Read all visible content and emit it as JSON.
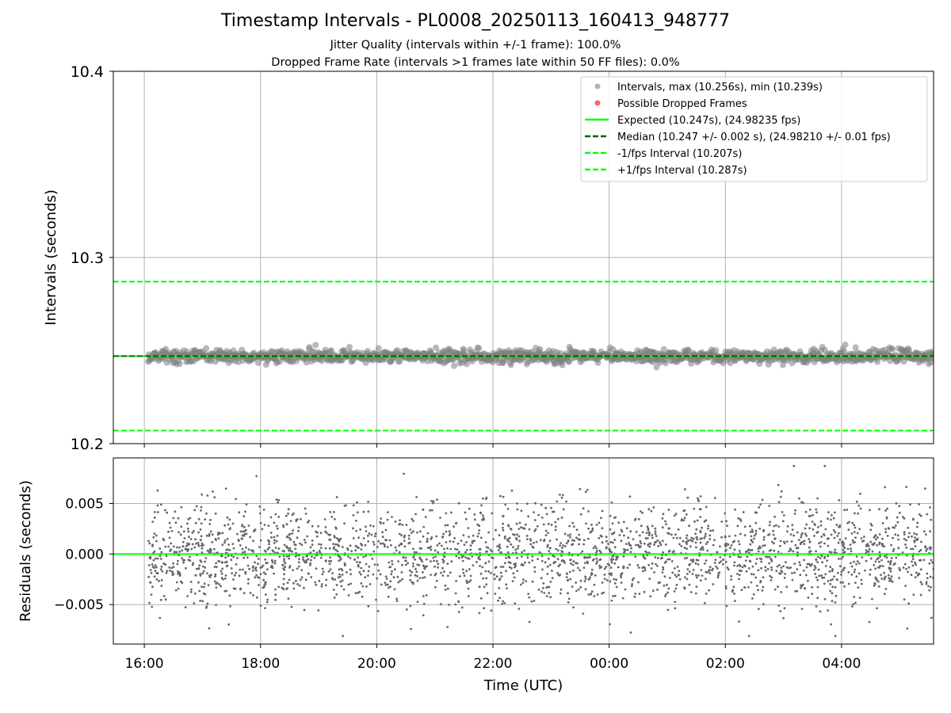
{
  "chart_data": {
    "type": "scatter",
    "title": "Timestamp Intervals - PL0008_20250113_160413_948777",
    "subtitle_lines": [
      "Jitter Quality (intervals within +/-1 frame): 100.0%",
      "Dropped Frame Rate (intervals >1 frames late within 50 FF files): 0.0%"
    ],
    "xlabel": "Time (UTC)",
    "x_start": "2025-01-13T16:04",
    "x_end": "2025-01-14T05:35",
    "xlim": [
      "2025-01-13T15:28",
      "2025-01-14T05:35"
    ],
    "x_ticks": [
      {
        "time": "2025-01-13T16:00",
        "label": "16:00"
      },
      {
        "time": "2025-01-13T18:00",
        "label": "18:00"
      },
      {
        "time": "2025-01-13T20:00",
        "label": "20:00"
      },
      {
        "time": "2025-01-13T22:00",
        "label": "22:00"
      },
      {
        "time": "2025-01-14T00:00",
        "label": "00:00"
      },
      {
        "time": "2025-01-14T02:00",
        "label": "02:00"
      },
      {
        "time": "2025-01-14T04:00",
        "label": "04:00"
      }
    ],
    "grid": true,
    "top_panel": {
      "ylabel": "Intervals (seconds)",
      "ylim": [
        10.2,
        10.4
      ],
      "y_ticks": [
        "10.2",
        "10.3",
        "10.4"
      ],
      "legend_placement": "top-right",
      "legend": [
        {
          "label": "Intervals, max (10.256s), min (10.239s)",
          "kind": "marker",
          "color": "#808080"
        },
        {
          "label": "Possible Dropped Frames",
          "kind": "marker",
          "color": "#ff0000"
        },
        {
          "label": "Expected (10.247s), (24.98235 fps)",
          "kind": "solid",
          "color": "#00ff00"
        },
        {
          "label": "Median (10.247 +/- 0.002 s), (24.98210 +/- 0.01 fps)",
          "kind": "dashed",
          "color": "#006400"
        },
        {
          "label": "-1/fps Interval (10.207s)",
          "kind": "dashed",
          "color": "#00ff00"
        },
        {
          "label": "+1/fps Interval (10.287s)",
          "kind": "dashed",
          "color": "#00ff00"
        }
      ],
      "lines": {
        "expected": 10.247,
        "median": 10.247,
        "minus_one_fps": 10.207,
        "plus_one_fps": 10.287
      },
      "intervals": {
        "center": 10.247,
        "max": 10.256,
        "min": 10.239,
        "spread_std": 0.002
      },
      "dropped_frames_count": 0
    },
    "bottom_panel": {
      "ylabel": "Residuals (seconds)",
      "ylim": [
        -0.0089,
        0.0095
      ],
      "y_ticks": [
        "−0.005",
        "0.000",
        "0.005"
      ],
      "y_tick_values": [
        -0.005,
        0.0,
        0.005
      ],
      "zero_line": 0.0,
      "residuals": {
        "max": 0.0087,
        "min": -0.0081,
        "spread_std": 0.0025
      }
    },
    "colors": {
      "points": "#808080",
      "dropped": "#ff0000",
      "expected": "#00ff00",
      "median": "#006400",
      "grid": "#b0b0b0"
    }
  }
}
